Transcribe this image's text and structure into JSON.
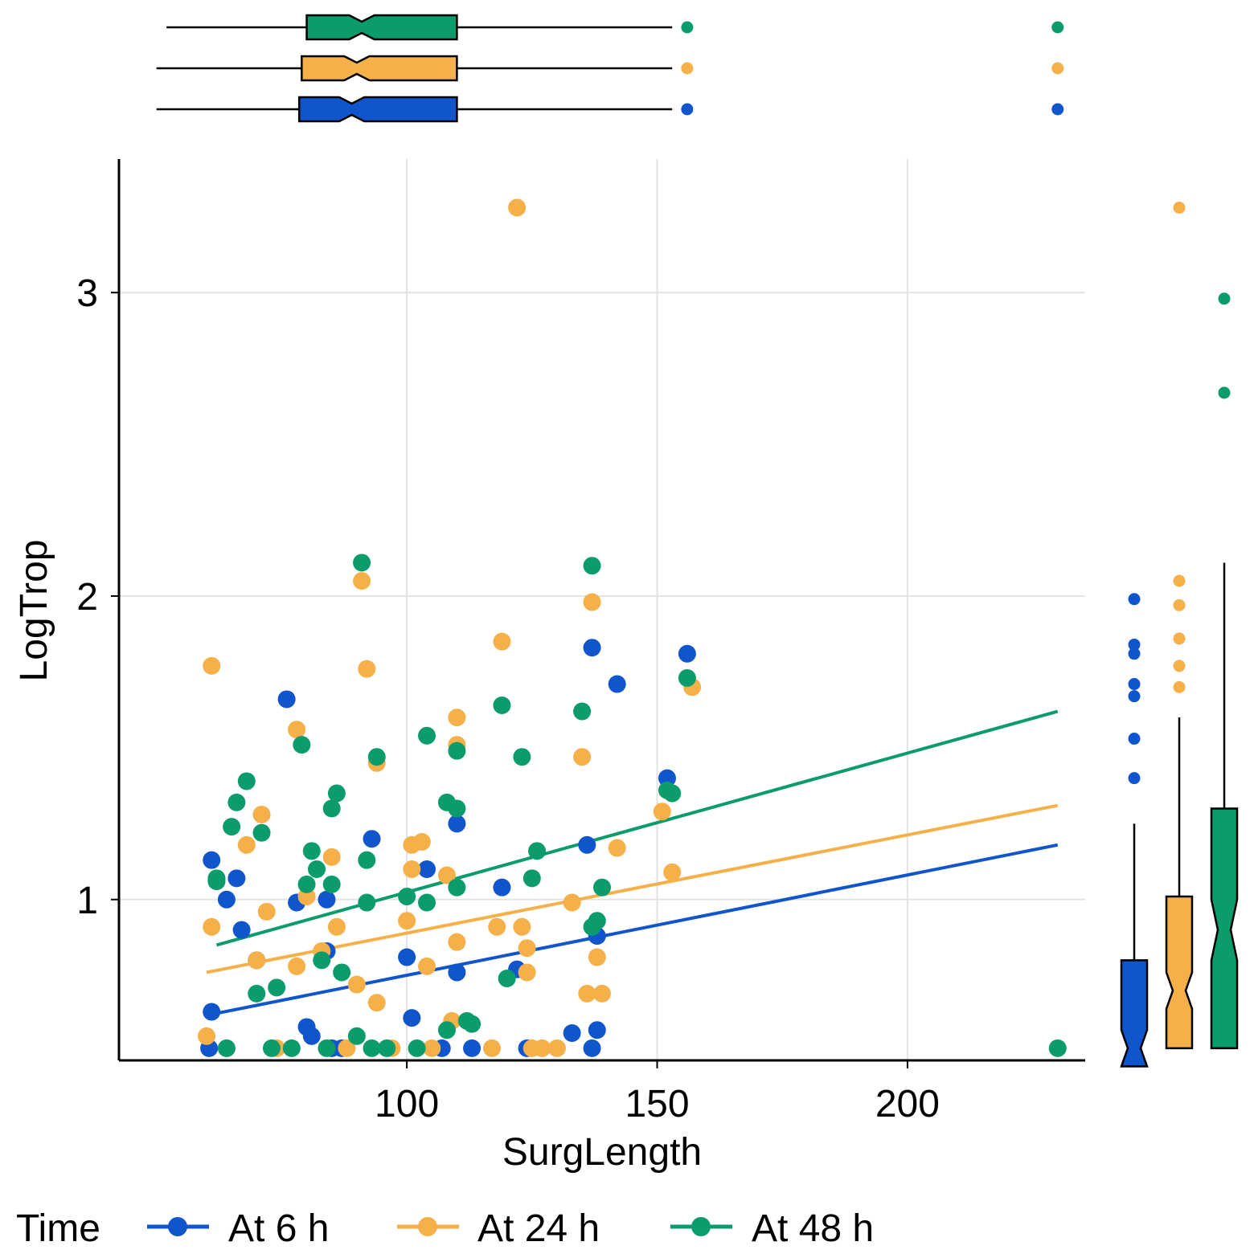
{
  "chart_data": {
    "type": "scatter",
    "xlabel": "SurgLength",
    "ylabel": "LogTrop",
    "xlim": [
      42.5,
      235.5
    ],
    "ylim": [
      0.47,
      3.44
    ],
    "xticks": [
      100,
      150,
      200
    ],
    "yticks": [
      1,
      2,
      3
    ],
    "grid": true,
    "legend": {
      "title": "Time",
      "position": "bottom-left"
    },
    "series": [
      {
        "name": "At 6 h",
        "color": "#1155CC",
        "points": [
          [
            60.5,
            0.51
          ],
          [
            61,
            0.63
          ],
          [
            61,
            1.13
          ],
          [
            64,
            1.0
          ],
          [
            66,
            1.07
          ],
          [
            67,
            0.9
          ],
          [
            70,
            0.8
          ],
          [
            76,
            1.66
          ],
          [
            78,
            0.99
          ],
          [
            80,
            0.58
          ],
          [
            81,
            0.55
          ],
          [
            84,
            1.0
          ],
          [
            84,
            0.83
          ],
          [
            85,
            0.51
          ],
          [
            87,
            0.51
          ],
          [
            93,
            1.2
          ],
          [
            100,
            0.81
          ],
          [
            101,
            0.61
          ],
          [
            104,
            1.1
          ],
          [
            107,
            0.51
          ],
          [
            110,
            1.25
          ],
          [
            110,
            0.76
          ],
          [
            113,
            0.51
          ],
          [
            119,
            1.04
          ],
          [
            122,
            0.77
          ],
          [
            124,
            0.51
          ],
          [
            133,
            0.56
          ],
          [
            136,
            1.18
          ],
          [
            137,
            0.51
          ],
          [
            137,
            1.83
          ],
          [
            138,
            0.57
          ],
          [
            138,
            0.88
          ],
          [
            142,
            1.71
          ],
          [
            152,
            1.4
          ],
          [
            156,
            1.81
          ]
        ],
        "trend": [
          [
            60.5,
            0.62
          ],
          [
            230,
            1.18
          ]
        ]
      },
      {
        "name": "At 24 h",
        "color": "#F6B04A",
        "points": [
          [
            60,
            0.55
          ],
          [
            61,
            1.77
          ],
          [
            61,
            0.91
          ],
          [
            64,
            0.51
          ],
          [
            68,
            1.18
          ],
          [
            70,
            0.8
          ],
          [
            71,
            1.28
          ],
          [
            72,
            0.96
          ],
          [
            74,
            0.51
          ],
          [
            78,
            0.78
          ],
          [
            78,
            1.56
          ],
          [
            80,
            1.01
          ],
          [
            83,
            0.83
          ],
          [
            85,
            1.14
          ],
          [
            86,
            0.91
          ],
          [
            88,
            0.51
          ],
          [
            90,
            0.72
          ],
          [
            91,
            2.05
          ],
          [
            92,
            1.76
          ],
          [
            94,
            0.66
          ],
          [
            94,
            1.45
          ],
          [
            97,
            0.51
          ],
          [
            100,
            0.93
          ],
          [
            101,
            1.18
          ],
          [
            101,
            1.1
          ],
          [
            103,
            1.19
          ],
          [
            104,
            0.78
          ],
          [
            105,
            0.51
          ],
          [
            108,
            1.08
          ],
          [
            109,
            0.6
          ],
          [
            110,
            0.86
          ],
          [
            110,
            1.51
          ],
          [
            110,
            1.6
          ],
          [
            117,
            0.51
          ],
          [
            118,
            0.91
          ],
          [
            119,
            1.85
          ],
          [
            122,
            3.28
          ],
          [
            123,
            0.91
          ],
          [
            124,
            0.84
          ],
          [
            124,
            0.76
          ],
          [
            125,
            0.51
          ],
          [
            127,
            0.51
          ],
          [
            130,
            0.51
          ],
          [
            133,
            0.99
          ],
          [
            135,
            1.47
          ],
          [
            136,
            0.69
          ],
          [
            137,
            1.98
          ],
          [
            138,
            0.81
          ],
          [
            139,
            0.69
          ],
          [
            142,
            1.17
          ],
          [
            151,
            1.29
          ],
          [
            153,
            1.09
          ],
          [
            157,
            1.7
          ]
        ],
        "trend": [
          [
            60,
            0.76
          ],
          [
            230,
            1.31
          ]
        ]
      },
      {
        "name": "At 48 h",
        "color": "#0C9C6C",
        "points": [
          [
            62,
            1.07
          ],
          [
            62,
            1.06
          ],
          [
            64,
            0.51
          ],
          [
            65,
            1.24
          ],
          [
            66,
            1.32
          ],
          [
            68,
            1.39
          ],
          [
            70,
            0.69
          ],
          [
            71,
            1.22
          ],
          [
            73,
            0.51
          ],
          [
            74,
            0.71
          ],
          [
            77,
            0.51
          ],
          [
            79,
            1.51
          ],
          [
            80,
            1.05
          ],
          [
            81,
            1.16
          ],
          [
            82,
            1.1
          ],
          [
            83,
            0.8
          ],
          [
            84,
            0.51
          ],
          [
            85,
            1.3
          ],
          [
            85,
            1.05
          ],
          [
            86,
            1.35
          ],
          [
            87,
            0.76
          ],
          [
            90,
            0.55
          ],
          [
            91,
            2.11
          ],
          [
            92,
            1.13
          ],
          [
            92,
            0.99
          ],
          [
            93,
            0.51
          ],
          [
            94,
            1.47
          ],
          [
            96,
            0.51
          ],
          [
            100,
            1.01
          ],
          [
            102,
            0.51
          ],
          [
            104,
            1.54
          ],
          [
            104,
            0.99
          ],
          [
            108,
            1.32
          ],
          [
            108,
            0.57
          ],
          [
            110,
            1.3
          ],
          [
            110,
            1.49
          ],
          [
            110,
            1.04
          ],
          [
            112,
            0.6
          ],
          [
            113,
            0.59
          ],
          [
            119,
            1.64
          ],
          [
            120,
            0.74
          ],
          [
            123,
            1.47
          ],
          [
            125,
            1.07
          ],
          [
            126,
            1.16
          ],
          [
            135,
            1.62
          ],
          [
            137,
            0.91
          ],
          [
            137,
            2.1
          ],
          [
            138,
            0.93
          ],
          [
            139,
            1.04
          ],
          [
            152,
            1.36
          ],
          [
            153,
            1.35
          ],
          [
            156,
            1.73
          ],
          [
            230,
            0.51
          ]
        ],
        "trend": [
          [
            62,
            0.85
          ],
          [
            230,
            1.62
          ]
        ]
      }
    ],
    "marginal_x": {
      "type": "boxplot",
      "groups": [
        {
          "name": "At 48 h",
          "color": "#0C9C6C",
          "whisker_low": 52,
          "q1": 80,
          "median": 91,
          "q3": 110,
          "whisker_high": 153,
          "notch": [
            88.5,
            93.5
          ],
          "outliers": [
            156,
            230
          ]
        },
        {
          "name": "At 24 h",
          "color": "#F6B04A",
          "whisker_low": 50,
          "q1": 79,
          "median": 90,
          "q3": 110,
          "whisker_high": 153,
          "notch": [
            87.5,
            92.5
          ],
          "outliers": [
            156,
            230
          ]
        },
        {
          "name": "At 6 h",
          "color": "#1155CC",
          "whisker_low": 50,
          "q1": 78.5,
          "median": 89,
          "q3": 110,
          "whisker_high": 153,
          "notch": [
            86.5,
            91.5
          ],
          "outliers": [
            156,
            230
          ]
        }
      ]
    },
    "marginal_y": {
      "type": "boxplot",
      "groups": [
        {
          "name": "At 6 h",
          "color": "#1155CC",
          "whisker_low": 0.45,
          "q1": 0.45,
          "median": 0.51,
          "q3": 0.8,
          "whisker_high": 1.25,
          "notch": [
            0.45,
            0.57
          ],
          "outliers": [
            1.4,
            1.53,
            1.67,
            1.71,
            1.81,
            1.84,
            1.99
          ]
        },
        {
          "name": "At 24 h",
          "color": "#F6B04A",
          "whisker_low": 0.51,
          "q1": 0.51,
          "median": 0.7,
          "q3": 1.01,
          "whisker_high": 1.6,
          "notch": [
            0.64,
            0.76
          ],
          "outliers": [
            1.7,
            1.77,
            1.86,
            1.97,
            2.05,
            3.28
          ]
        },
        {
          "name": "At 48 h",
          "color": "#0C9C6C",
          "whisker_low": 0.51,
          "q1": 0.51,
          "median": 0.9,
          "q3": 1.3,
          "whisker_high": 2.11,
          "notch": [
            0.8,
            1.0
          ],
          "outliers": [
            2.67,
            2.98
          ]
        }
      ]
    }
  }
}
